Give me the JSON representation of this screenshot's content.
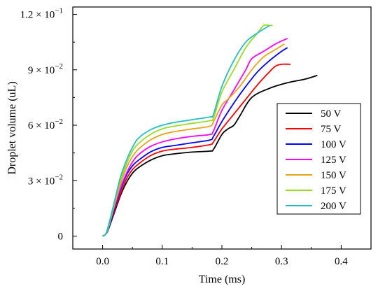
{
  "chart_data": {
    "type": "line",
    "title": "",
    "xlabel": "Time (ms)",
    "ylabel": "Droplet volume (uL)",
    "xlim": [
      -0.05,
      0.45
    ],
    "ylim": [
      -0.007,
      0.124
    ],
    "x_ticks": [
      0.0,
      0.1,
      0.2,
      0.3,
      0.4
    ],
    "x_tick_labels": [
      "0.0",
      "0.1",
      "0.2",
      "0.3",
      "0.4"
    ],
    "y_ticks": [
      0,
      0.03,
      0.06,
      0.09,
      0.12
    ],
    "y_tick_labels": [
      {
        "mantissa": "0",
        "exponent": ""
      },
      {
        "mantissa": "3 × 10",
        "exponent": "−2"
      },
      {
        "mantissa": "6 × 10",
        "exponent": "−2"
      },
      {
        "mantissa": "9 × 10",
        "exponent": "−2"
      },
      {
        "mantissa": "1.2 × 10",
        "exponent": "−1"
      }
    ],
    "grid": false,
    "legend_position": "right",
    "series": [
      {
        "name": "50 V",
        "color": "#000000",
        "x": [
          0.0,
          0.005,
          0.01,
          0.02,
          0.03,
          0.04,
          0.05,
          0.06,
          0.08,
          0.1,
          0.12,
          0.15,
          0.18,
          0.186,
          0.2,
          0.21,
          0.22,
          0.23,
          0.25,
          0.28,
          0.31,
          0.34,
          0.36
        ],
        "y": [
          0.0,
          0.001,
          0.004,
          0.013,
          0.022,
          0.029,
          0.034,
          0.037,
          0.041,
          0.0435,
          0.0445,
          0.0455,
          0.046,
          0.047,
          0.055,
          0.058,
          0.06,
          0.065,
          0.075,
          0.08,
          0.083,
          0.085,
          0.087
        ]
      },
      {
        "name": "75 V",
        "color": "#ff0000",
        "x": [
          0.0,
          0.005,
          0.01,
          0.02,
          0.03,
          0.04,
          0.05,
          0.06,
          0.08,
          0.1,
          0.12,
          0.15,
          0.18,
          0.186,
          0.2,
          0.22,
          0.24,
          0.26,
          0.28,
          0.29,
          0.3,
          0.315
        ],
        "y": [
          0.0,
          0.001,
          0.004,
          0.014,
          0.023,
          0.031,
          0.036,
          0.039,
          0.0435,
          0.046,
          0.047,
          0.048,
          0.0495,
          0.051,
          0.058,
          0.066,
          0.074,
          0.082,
          0.089,
          0.092,
          0.093,
          0.093
        ]
      },
      {
        "name": "100 V",
        "color": "#0000ff",
        "x": [
          0.0,
          0.005,
          0.01,
          0.02,
          0.03,
          0.04,
          0.05,
          0.06,
          0.08,
          0.1,
          0.12,
          0.15,
          0.18,
          0.186,
          0.2,
          0.22,
          0.24,
          0.26,
          0.28,
          0.3,
          0.31
        ],
        "y": [
          0.0,
          0.001,
          0.004,
          0.015,
          0.025,
          0.033,
          0.038,
          0.041,
          0.0455,
          0.048,
          0.049,
          0.0505,
          0.052,
          0.054,
          0.062,
          0.072,
          0.081,
          0.089,
          0.095,
          0.1,
          0.102
        ]
      },
      {
        "name": "125 V",
        "color": "#ff00ff",
        "x": [
          0.0,
          0.005,
          0.01,
          0.02,
          0.03,
          0.04,
          0.05,
          0.06,
          0.08,
          0.1,
          0.12,
          0.15,
          0.18,
          0.186,
          0.2,
          0.22,
          0.24,
          0.25,
          0.27,
          0.29,
          0.31
        ],
        "y": [
          0.0,
          0.001,
          0.005,
          0.016,
          0.026,
          0.034,
          0.04,
          0.044,
          0.0485,
          0.051,
          0.0525,
          0.054,
          0.055,
          0.057,
          0.068,
          0.079,
          0.09,
          0.096,
          0.1,
          0.104,
          0.107
        ]
      },
      {
        "name": "150 V",
        "color": "#e8a317",
        "x": [
          0.0,
          0.005,
          0.01,
          0.02,
          0.03,
          0.04,
          0.05,
          0.06,
          0.08,
          0.1,
          0.12,
          0.15,
          0.18,
          0.186,
          0.2,
          0.21,
          0.23,
          0.25,
          0.27,
          0.29,
          0.305
        ],
        "y": [
          0.0,
          0.001,
          0.005,
          0.017,
          0.028,
          0.037,
          0.043,
          0.047,
          0.052,
          0.055,
          0.0565,
          0.058,
          0.0595,
          0.062,
          0.071,
          0.074,
          0.081,
          0.09,
          0.097,
          0.101,
          0.104
        ]
      },
      {
        "name": "175 V",
        "color": "#99dd22",
        "x": [
          0.0,
          0.005,
          0.01,
          0.02,
          0.03,
          0.04,
          0.05,
          0.06,
          0.08,
          0.1,
          0.12,
          0.15,
          0.18,
          0.186,
          0.2,
          0.22,
          0.24,
          0.26,
          0.27,
          0.28,
          0.285
        ],
        "y": [
          0.0,
          0.001,
          0.005,
          0.018,
          0.03,
          0.039,
          0.046,
          0.05,
          0.055,
          0.058,
          0.0595,
          0.061,
          0.0625,
          0.064,
          0.078,
          0.09,
          0.102,
          0.11,
          0.114,
          0.114,
          0.114
        ]
      },
      {
        "name": "200 V",
        "color": "#20c0c0",
        "x": [
          0.0,
          0.005,
          0.01,
          0.02,
          0.03,
          0.04,
          0.05,
          0.06,
          0.08,
          0.1,
          0.12,
          0.15,
          0.18,
          0.186,
          0.2,
          0.22,
          0.24,
          0.26,
          0.28
        ],
        "y": [
          0.0,
          0.001,
          0.006,
          0.019,
          0.032,
          0.041,
          0.048,
          0.053,
          0.0575,
          0.06,
          0.0615,
          0.063,
          0.0645,
          0.066,
          0.081,
          0.095,
          0.105,
          0.11,
          0.114
        ]
      }
    ]
  }
}
